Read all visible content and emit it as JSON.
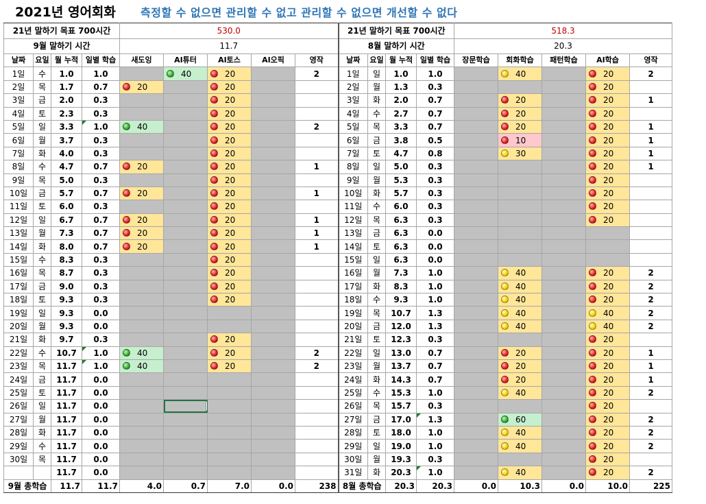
{
  "title": "2021년 영어회화",
  "motto": "측정할 수 없으면 관리할 수 없고 관리할 수 없으면 개선할 수 없다",
  "left": {
    "goal_label": "21년 말하기 목표 700시간",
    "goal_value": "530.0",
    "month_label": "9월 말하기 시간",
    "month_value": "11.7",
    "headers": [
      "날짜",
      "요일",
      "월 누적",
      "일별 학습",
      "새도잉",
      "AI튜터",
      "AI토스",
      "AI오픽",
      "영작"
    ],
    "rows": [
      [
        "1일",
        "수",
        "1.0",
        "1.0",
        "",
        "40g",
        "20r",
        "",
        "2"
      ],
      [
        "2일",
        "목",
        "1.7",
        "0.7",
        "20r",
        "",
        "20r",
        "",
        ""
      ],
      [
        "3일",
        "금",
        "2.0",
        "0.3",
        "",
        "",
        "20r",
        "",
        ""
      ],
      [
        "4일",
        "토",
        "2.3",
        "0.3",
        "",
        "",
        "20r",
        "",
        ""
      ],
      [
        "5일",
        "일",
        "3.3",
        "1.0",
        "40g",
        "",
        "20r",
        "",
        "2"
      ],
      [
        "6일",
        "월",
        "3.7",
        "0.3",
        "",
        "",
        "20r",
        "",
        ""
      ],
      [
        "7일",
        "화",
        "4.0",
        "0.3",
        "",
        "",
        "20r",
        "",
        ""
      ],
      [
        "8일",
        "수",
        "4.7",
        "0.7",
        "20r",
        "",
        "20r",
        "",
        "1"
      ],
      [
        "9일",
        "목",
        "5.0",
        "0.3",
        "",
        "",
        "20r",
        "",
        ""
      ],
      [
        "10일",
        "금",
        "5.7",
        "0.7",
        "20r",
        "",
        "20r",
        "",
        "1"
      ],
      [
        "11일",
        "토",
        "6.0",
        "0.3",
        "",
        "",
        "20r",
        "",
        ""
      ],
      [
        "12일",
        "일",
        "6.7",
        "0.7",
        "20r",
        "",
        "20r",
        "",
        "1"
      ],
      [
        "13일",
        "월",
        "7.3",
        "0.7",
        "20r",
        "",
        "20r",
        "",
        "1"
      ],
      [
        "14일",
        "화",
        "8.0",
        "0.7",
        "20r",
        "",
        "20r",
        "",
        "1"
      ],
      [
        "15일",
        "수",
        "8.3",
        "0.3",
        "",
        "",
        "20r",
        "",
        ""
      ],
      [
        "16일",
        "목",
        "8.7",
        "0.3",
        "",
        "",
        "20r",
        "",
        ""
      ],
      [
        "17일",
        "금",
        "9.0",
        "0.3",
        "",
        "",
        "20r",
        "",
        ""
      ],
      [
        "18일",
        "토",
        "9.3",
        "0.3",
        "",
        "",
        "20r",
        "",
        ""
      ],
      [
        "19일",
        "일",
        "9.3",
        "0.0",
        "",
        "",
        "",
        "",
        ""
      ],
      [
        "20일",
        "월",
        "9.3",
        "0.0",
        "",
        "",
        "",
        "",
        ""
      ],
      [
        "21일",
        "화",
        "9.7",
        "0.3",
        "",
        "",
        "20r",
        "",
        ""
      ],
      [
        "22일",
        "수",
        "10.7",
        "1.0",
        "40g",
        "",
        "20r",
        "",
        "2"
      ],
      [
        "23일",
        "목",
        "11.7",
        "1.0",
        "40g",
        "",
        "20r",
        "",
        "2"
      ],
      [
        "24일",
        "금",
        "11.7",
        "0.0",
        "",
        "",
        "",
        "",
        ""
      ],
      [
        "25일",
        "토",
        "11.7",
        "0.0",
        "",
        "",
        "",
        "",
        ""
      ],
      [
        "26일",
        "일",
        "11.7",
        "0.0",
        "",
        "",
        "",
        "",
        ""
      ],
      [
        "27일",
        "월",
        "11.7",
        "0.0",
        "",
        "",
        "",
        "",
        ""
      ],
      [
        "28일",
        "화",
        "11.7",
        "0.0",
        "",
        "",
        "",
        "",
        ""
      ],
      [
        "29일",
        "수",
        "11.7",
        "0.0",
        "",
        "",
        "",
        "",
        ""
      ],
      [
        "30일",
        "목",
        "11.7",
        "0.0",
        "",
        "",
        "",
        "",
        ""
      ],
      [
        "",
        "",
        "11.7",
        "0.0",
        "",
        "",
        "",
        "",
        ""
      ]
    ],
    "totals": [
      "9월 총학습",
      "11.7",
      "11.7",
      "4.0",
      "0.7",
      "7.0",
      "0.0",
      "238"
    ]
  },
  "right": {
    "goal_label": "21년 말하기 목표 700시간",
    "goal_value": "518.3",
    "month_label": "8월 말하기 시간",
    "month_value": "20.3",
    "headers": [
      "날짜",
      "요일",
      "월 누적",
      "일별 학습",
      "장문학습",
      "회화학습",
      "패턴학습",
      "AI학습",
      "영작"
    ],
    "rows": [
      [
        "1일",
        "일",
        "1.0",
        "1.0",
        "",
        "40y",
        "",
        "20r",
        "2"
      ],
      [
        "2일",
        "월",
        "1.3",
        "0.3",
        "",
        "",
        "",
        "20r",
        ""
      ],
      [
        "3일",
        "화",
        "2.0",
        "0.7",
        "",
        "20r",
        "",
        "20r",
        "1"
      ],
      [
        "4일",
        "수",
        "2.7",
        "0.7",
        "",
        "20r",
        "",
        "20r",
        ""
      ],
      [
        "5일",
        "목",
        "3.3",
        "0.7",
        "",
        "20r",
        "",
        "20r",
        "1"
      ],
      [
        "6일",
        "금",
        "3.8",
        "0.5",
        "",
        "10p",
        "",
        "20r",
        "1"
      ],
      [
        "7일",
        "토",
        "4.7",
        "0.8",
        "",
        "30y",
        "",
        "20r",
        "1"
      ],
      [
        "8일",
        "일",
        "5.0",
        "0.3",
        "",
        "",
        "",
        "20r",
        "1"
      ],
      [
        "9일",
        "월",
        "5.3",
        "0.3",
        "",
        "",
        "",
        "20r",
        ""
      ],
      [
        "10일",
        "화",
        "5.7",
        "0.3",
        "",
        "",
        "",
        "20r",
        ""
      ],
      [
        "11일",
        "수",
        "6.0",
        "0.3",
        "",
        "",
        "",
        "20r",
        ""
      ],
      [
        "12일",
        "목",
        "6.3",
        "0.3",
        "",
        "",
        "",
        "20r",
        ""
      ],
      [
        "13일",
        "금",
        "6.3",
        "0.0",
        "",
        "",
        "",
        "",
        ""
      ],
      [
        "14일",
        "토",
        "6.3",
        "0.0",
        "",
        "",
        "",
        "",
        ""
      ],
      [
        "15일",
        "일",
        "6.3",
        "0.0",
        "",
        "",
        "",
        "",
        ""
      ],
      [
        "16일",
        "월",
        "7.3",
        "1.0",
        "",
        "40y",
        "",
        "20r",
        "2"
      ],
      [
        "17일",
        "화",
        "8.3",
        "1.0",
        "",
        "40y",
        "",
        "20r",
        "2"
      ],
      [
        "18일",
        "수",
        "9.3",
        "1.0",
        "",
        "40y",
        "",
        "20r",
        "2"
      ],
      [
        "19일",
        "목",
        "10.7",
        "1.3",
        "",
        "40y",
        "",
        "40y",
        "2"
      ],
      [
        "20일",
        "금",
        "12.0",
        "1.3",
        "",
        "40y",
        "",
        "40y",
        "2"
      ],
      [
        "21일",
        "토",
        "12.3",
        "0.3",
        "",
        "",
        "",
        "20r",
        ""
      ],
      [
        "22일",
        "일",
        "13.0",
        "0.7",
        "",
        "20r",
        "",
        "20r",
        "1"
      ],
      [
        "23일",
        "월",
        "13.7",
        "0.7",
        "",
        "20r",
        "",
        "20r",
        "1"
      ],
      [
        "24일",
        "화",
        "14.3",
        "0.7",
        "",
        "20r",
        "",
        "20r",
        "1"
      ],
      [
        "25일",
        "수",
        "15.3",
        "1.0",
        "",
        "40y",
        "",
        "20r",
        "2"
      ],
      [
        "26일",
        "목",
        "15.7",
        "0.3",
        "",
        "",
        "",
        "20r",
        ""
      ],
      [
        "27일",
        "금",
        "17.0",
        "1.3",
        "",
        "60g",
        "",
        "20r",
        "2"
      ],
      [
        "28일",
        "토",
        "18.0",
        "1.0",
        "",
        "40y",
        "",
        "20r",
        "2"
      ],
      [
        "29일",
        "일",
        "19.0",
        "1.0",
        "",
        "40y",
        "",
        "20r",
        "2"
      ],
      [
        "30일",
        "월",
        "19.3",
        "0.3",
        "",
        "",
        "",
        "20r",
        ""
      ],
      [
        "31일",
        "화",
        "20.3",
        "1.0",
        "",
        "40y",
        "",
        "20r",
        "2"
      ]
    ],
    "totals": [
      "8월 총학습",
      "20.3",
      "20.3",
      "0.0",
      "10.3",
      "0.0",
      "10.0",
      "225"
    ]
  },
  "indicator_colors": {
    "red": "#e02020",
    "yellow": "#f5d000",
    "green": "#33a833"
  },
  "fill_colors": {
    "yellow": "#ffe699",
    "green": "#c6efce",
    "pink": "#ffc7ce",
    "empty": "#c0c0c0"
  }
}
